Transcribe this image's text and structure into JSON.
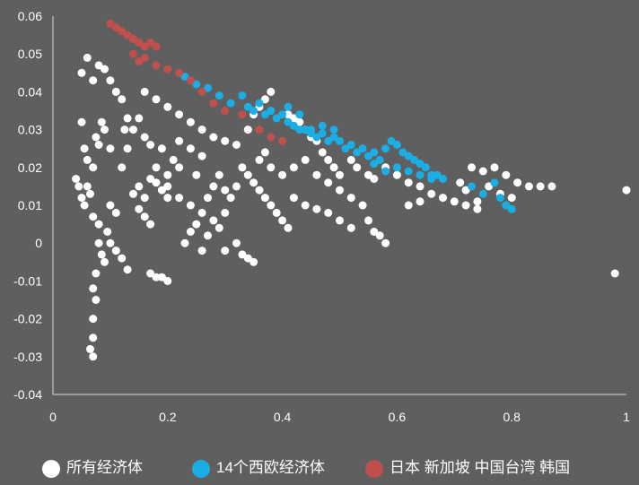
{
  "chart_data": {
    "type": "scatter",
    "title": "",
    "xlabel": "",
    "ylabel": "",
    "xlim": [
      0,
      1
    ],
    "ylim": [
      -0.04,
      0.06
    ],
    "xticks": [
      0,
      0.2,
      0.4,
      0.6,
      0.8,
      1
    ],
    "xtick_labels": [
      "0",
      "0.2",
      "0.4",
      "0.6",
      "0.8",
      "1"
    ],
    "yticks": [
      -0.04,
      -0.03,
      -0.02,
      -0.01,
      0,
      0.01,
      0.02,
      0.03,
      0.04,
      0.05,
      0.06
    ],
    "ytick_labels": [
      "-0.04",
      "-0.03",
      "-0.02",
      "-0.01",
      "0",
      "0.01",
      "0.02",
      "0.03",
      "0.04",
      "0.05",
      "0.06"
    ],
    "grid": false,
    "legend_position": "bottom",
    "series": [
      {
        "name": "所有经济体",
        "color": "#ffffff",
        "points": [
          [
            0.04,
            0.017
          ],
          [
            0.05,
            0.012
          ],
          [
            0.06,
            0.015
          ],
          [
            0.07,
            0.02
          ],
          [
            0.075,
            0.028
          ],
          [
            0.08,
            0.026
          ],
          [
            0.09,
            0.03
          ],
          [
            0.1,
            0.025
          ],
          [
            0.085,
            0.032
          ],
          [
            0.065,
            0.013
          ],
          [
            0.055,
            0.01
          ],
          [
            0.07,
            0.007
          ],
          [
            0.05,
            0.045
          ],
          [
            0.06,
            0.049
          ],
          [
            0.07,
            0.043
          ],
          [
            0.08,
            0.047
          ],
          [
            0.09,
            0.046
          ],
          [
            0.1,
            0.043
          ],
          [
            0.11,
            0.04
          ],
          [
            0.12,
            0.038
          ],
          [
            0.05,
            0.032
          ],
          [
            0.055,
            0.025
          ],
          [
            0.06,
            0.022
          ],
          [
            0.045,
            0.015
          ],
          [
            0.08,
            0.005
          ],
          [
            0.08,
            0.0
          ],
          [
            0.085,
            -0.003
          ],
          [
            0.075,
            -0.008
          ],
          [
            0.07,
            -0.012
          ],
          [
            0.075,
            -0.015
          ],
          [
            0.07,
            -0.02
          ],
          [
            0.07,
            -0.025
          ],
          [
            0.065,
            -0.028
          ],
          [
            0.07,
            -0.03
          ],
          [
            0.09,
            -0.005
          ],
          [
            0.1,
            0.0
          ],
          [
            0.11,
            -0.002
          ],
          [
            0.12,
            -0.004
          ],
          [
            0.13,
            -0.007
          ],
          [
            0.095,
            0.003
          ],
          [
            0.1,
            0.01
          ],
          [
            0.11,
            0.008
          ],
          [
            0.12,
            0.02
          ],
          [
            0.13,
            0.025
          ],
          [
            0.14,
            0.03
          ],
          [
            0.15,
            0.033
          ],
          [
            0.16,
            0.028
          ],
          [
            0.17,
            0.026
          ],
          [
            0.13,
            0.033
          ],
          [
            0.125,
            0.03
          ],
          [
            0.14,
            0.013
          ],
          [
            0.15,
            0.015
          ],
          [
            0.16,
            0.012
          ],
          [
            0.15,
            0.009
          ],
          [
            0.16,
            0.007
          ],
          [
            0.17,
            0.005
          ],
          [
            0.18,
            0.016
          ],
          [
            0.19,
            0.014
          ],
          [
            0.2,
            0.012
          ],
          [
            0.17,
            0.017
          ],
          [
            0.18,
            0.02
          ],
          [
            0.2,
            0.018
          ],
          [
            0.16,
            0.04
          ],
          [
            0.18,
            0.038
          ],
          [
            0.2,
            0.036
          ],
          [
            0.22,
            0.034
          ],
          [
            0.24,
            0.032
          ],
          [
            0.26,
            0.03
          ],
          [
            0.28,
            0.028
          ],
          [
            0.3,
            0.027
          ],
          [
            0.24,
            0.025
          ],
          [
            0.26,
            0.023
          ],
          [
            0.22,
            0.027
          ],
          [
            0.2,
            0.015
          ],
          [
            0.22,
            0.012
          ],
          [
            0.24,
            0.01
          ],
          [
            0.26,
            0.008
          ],
          [
            0.28,
            0.006
          ],
          [
            0.25,
            0.005
          ],
          [
            0.23,
            0.0
          ],
          [
            0.24,
            0.003
          ],
          [
            0.26,
            -0.002
          ],
          [
            0.27,
            0.002
          ],
          [
            0.29,
            0.004
          ],
          [
            0.3,
            0.008
          ],
          [
            0.27,
            0.012
          ],
          [
            0.28,
            0.015
          ],
          [
            0.29,
            0.018
          ],
          [
            0.3,
            0.014
          ],
          [
            0.31,
            0.012
          ],
          [
            0.32,
            0.015
          ],
          [
            0.25,
            0.018
          ],
          [
            0.22,
            0.02
          ],
          [
            0.21,
            0.022
          ],
          [
            0.19,
            0.025
          ],
          [
            0.17,
            -0.008
          ],
          [
            0.18,
            -0.009
          ],
          [
            0.19,
            -0.009
          ],
          [
            0.2,
            -0.01
          ],
          [
            0.33,
            0.02
          ],
          [
            0.34,
            0.018
          ],
          [
            0.35,
            0.016
          ],
          [
            0.36,
            0.014
          ],
          [
            0.37,
            0.012
          ],
          [
            0.38,
            0.01
          ],
          [
            0.39,
            0.008
          ],
          [
            0.4,
            0.006
          ],
          [
            0.41,
            0.004
          ],
          [
            0.36,
            0.022
          ],
          [
            0.37,
            0.024
          ],
          [
            0.38,
            0.02
          ],
          [
            0.4,
            0.018
          ],
          [
            0.42,
            0.02
          ],
          [
            0.44,
            0.022
          ],
          [
            0.46,
            0.018
          ],
          [
            0.48,
            0.016
          ],
          [
            0.5,
            0.014
          ],
          [
            0.42,
            0.012
          ],
          [
            0.44,
            0.01
          ],
          [
            0.46,
            0.009
          ],
          [
            0.48,
            0.008
          ],
          [
            0.5,
            0.006
          ],
          [
            0.52,
            0.004
          ],
          [
            0.52,
            0.012
          ],
          [
            0.54,
            0.01
          ],
          [
            0.55,
            0.006
          ],
          [
            0.56,
            0.003
          ],
          [
            0.57,
            0.002
          ],
          [
            0.58,
            0.0
          ],
          [
            0.32,
            0.0
          ],
          [
            0.33,
            -0.003
          ],
          [
            0.34,
            -0.004
          ],
          [
            0.35,
            -0.005
          ],
          [
            0.3,
            -0.002
          ],
          [
            0.38,
            0.04
          ],
          [
            0.37,
            0.038
          ],
          [
            0.36,
            0.036
          ],
          [
            0.35,
            0.034
          ],
          [
            0.34,
            0.03
          ],
          [
            0.32,
            0.026
          ],
          [
            0.41,
            0.034
          ],
          [
            0.42,
            0.033
          ],
          [
            0.43,
            0.032
          ],
          [
            0.44,
            0.03
          ],
          [
            0.45,
            0.028
          ],
          [
            0.46,
            0.027
          ],
          [
            0.47,
            0.024
          ],
          [
            0.48,
            0.022
          ],
          [
            0.49,
            0.02
          ],
          [
            0.5,
            0.018
          ],
          [
            0.52,
            0.022
          ],
          [
            0.53,
            0.02
          ],
          [
            0.55,
            0.018
          ],
          [
            0.56,
            0.017
          ],
          [
            0.58,
            0.02
          ],
          [
            0.6,
            0.018
          ],
          [
            0.62,
            0.016
          ],
          [
            0.64,
            0.015
          ],
          [
            0.66,
            0.013
          ],
          [
            0.68,
            0.012
          ],
          [
            0.7,
            0.011
          ],
          [
            0.72,
            0.01
          ],
          [
            0.74,
            0.009
          ],
          [
            0.73,
            0.02
          ],
          [
            0.75,
            0.019
          ],
          [
            0.77,
            0.02
          ],
          [
            0.79,
            0.018
          ],
          [
            0.81,
            0.016
          ],
          [
            0.83,
            0.015
          ],
          [
            0.85,
            0.015
          ],
          [
            0.87,
            0.015
          ],
          [
            0.76,
            0.015
          ],
          [
            0.78,
            0.013
          ],
          [
            0.8,
            0.012
          ],
          [
            0.72,
            0.014
          ],
          [
            0.71,
            0.016
          ],
          [
            0.74,
            0.011
          ],
          [
            0.62,
            0.01
          ],
          [
            0.64,
            0.011
          ],
          [
            0.98,
            -0.008
          ],
          [
            1.0,
            0.014
          ]
        ]
      },
      {
        "name": "14个西欧经济体",
        "color": "#1aaee5",
        "points": [
          [
            0.23,
            0.044
          ],
          [
            0.25,
            0.042
          ],
          [
            0.27,
            0.041
          ],
          [
            0.29,
            0.039
          ],
          [
            0.31,
            0.037
          ],
          [
            0.33,
            0.039
          ],
          [
            0.34,
            0.036
          ],
          [
            0.35,
            0.035
          ],
          [
            0.36,
            0.037
          ],
          [
            0.37,
            0.034
          ],
          [
            0.38,
            0.035
          ],
          [
            0.39,
            0.033
          ],
          [
            0.4,
            0.034
          ],
          [
            0.41,
            0.032
          ],
          [
            0.42,
            0.031
          ],
          [
            0.43,
            0.03
          ],
          [
            0.44,
            0.03
          ],
          [
            0.45,
            0.029
          ],
          [
            0.46,
            0.028
          ],
          [
            0.47,
            0.029
          ],
          [
            0.48,
            0.027
          ],
          [
            0.49,
            0.028
          ],
          [
            0.5,
            0.027
          ],
          [
            0.51,
            0.025
          ],
          [
            0.52,
            0.026
          ],
          [
            0.53,
            0.024
          ],
          [
            0.54,
            0.025
          ],
          [
            0.55,
            0.023
          ],
          [
            0.56,
            0.024
          ],
          [
            0.57,
            0.022
          ],
          [
            0.58,
            0.025
          ],
          [
            0.59,
            0.027
          ],
          [
            0.6,
            0.026
          ],
          [
            0.61,
            0.024
          ],
          [
            0.62,
            0.023
          ],
          [
            0.63,
            0.022
          ],
          [
            0.64,
            0.021
          ],
          [
            0.65,
            0.02
          ],
          [
            0.66,
            0.018
          ],
          [
            0.67,
            0.018
          ],
          [
            0.68,
            0.017
          ],
          [
            0.56,
            0.021
          ],
          [
            0.58,
            0.019
          ],
          [
            0.6,
            0.02
          ],
          [
            0.62,
            0.019
          ],
          [
            0.64,
            0.018
          ],
          [
            0.66,
            0.017
          ],
          [
            0.45,
            0.03
          ],
          [
            0.47,
            0.031
          ],
          [
            0.49,
            0.03
          ],
          [
            0.41,
            0.036
          ],
          [
            0.43,
            0.034
          ],
          [
            0.73,
            0.015
          ],
          [
            0.75,
            0.013
          ],
          [
            0.77,
            0.016
          ],
          [
            0.78,
            0.012
          ],
          [
            0.79,
            0.01
          ],
          [
            0.8,
            0.009
          ]
        ]
      },
      {
        "name": "日本 新加坡 中国台湾 韩国",
        "color": "#c0504d",
        "points": [
          [
            0.1,
            0.058
          ],
          [
            0.11,
            0.057
          ],
          [
            0.12,
            0.056
          ],
          [
            0.13,
            0.055
          ],
          [
            0.14,
            0.054
          ],
          [
            0.15,
            0.053
          ],
          [
            0.16,
            0.052
          ],
          [
            0.17,
            0.053
          ],
          [
            0.18,
            0.052
          ],
          [
            0.14,
            0.05
          ],
          [
            0.15,
            0.048
          ],
          [
            0.16,
            0.049
          ],
          [
            0.18,
            0.047
          ],
          [
            0.2,
            0.046
          ],
          [
            0.22,
            0.045
          ],
          [
            0.24,
            0.043
          ],
          [
            0.26,
            0.04
          ],
          [
            0.28,
            0.037
          ],
          [
            0.3,
            0.035
          ],
          [
            0.33,
            0.034
          ],
          [
            0.36,
            0.03
          ],
          [
            0.38,
            0.028
          ],
          [
            0.4,
            0.027
          ]
        ]
      }
    ]
  },
  "legend": {
    "items": [
      {
        "label": "所有经济体",
        "color": "#ffffff"
      },
      {
        "label": "14个西欧经济体",
        "color": "#1aaee5"
      },
      {
        "label": "日本 新加坡 中国台湾 韩国",
        "color": "#c0504d"
      }
    ]
  }
}
